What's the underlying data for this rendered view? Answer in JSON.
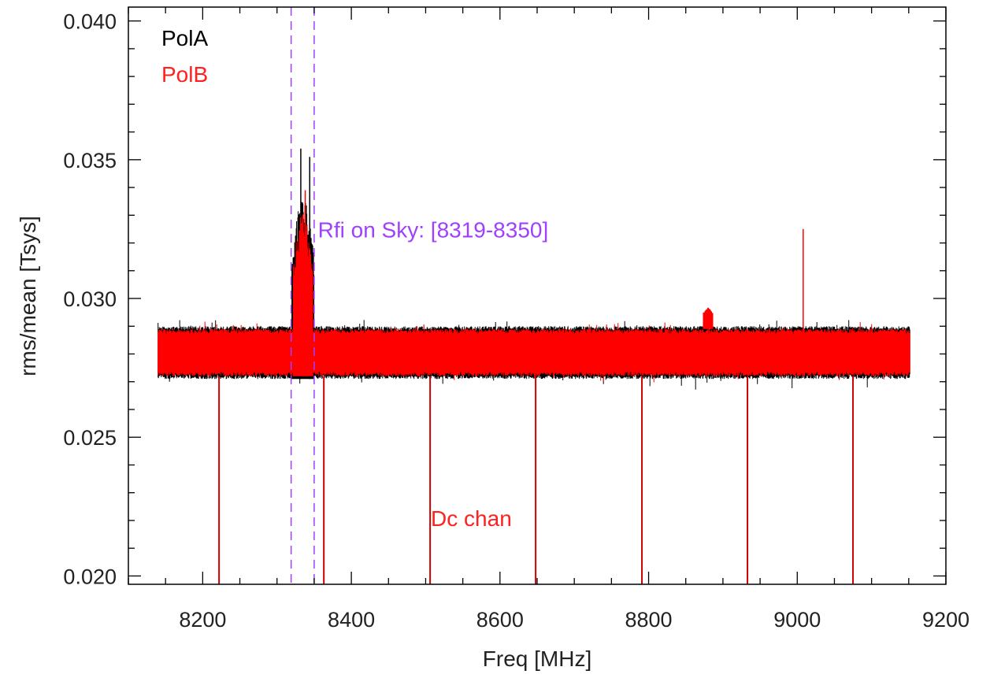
{
  "chart_data": {
    "type": "line",
    "xlabel": "Freq [MHz]",
    "ylabel": "rms/mean [Tsys]",
    "xlim": [
      8100,
      9200
    ],
    "ylim": [
      0.0197,
      0.0405
    ],
    "xticks": [
      8200,
      8400,
      8600,
      8800,
      9000,
      9200
    ],
    "xtick_labels": [
      "8200",
      "8400",
      "8600",
      "8800",
      "9000",
      "9200"
    ],
    "yticks": [
      0.02,
      0.025,
      0.03,
      0.035,
      0.04
    ],
    "ytick_labels": [
      "0.020",
      "0.025",
      "0.030",
      "0.035",
      "0.040"
    ],
    "x_minor_step": 50,
    "y_minor_step": 0.001,
    "x_range": [
      8140,
      9152
    ],
    "series": [
      {
        "name": "PolA",
        "color": "#000000",
        "baseline": 0.028,
        "band_low": 0.0271,
        "band_high": 0.029,
        "features": [
          {
            "kind": "rfi_peak",
            "x": 8332,
            "y": 0.0354
          },
          {
            "kind": "rfi_peak",
            "x": 8344,
            "y": 0.0351
          },
          {
            "kind": "rfi_bump",
            "x_start": 8320,
            "x_end": 8350,
            "y": 0.033
          }
        ]
      },
      {
        "name": "PolB",
        "color": "#ff0000",
        "baseline": 0.028,
        "band_low": 0.0272,
        "band_high": 0.0289,
        "features": [
          {
            "kind": "rfi_peak",
            "x": 8338,
            "y": 0.0339
          },
          {
            "kind": "rfi_bump",
            "x_start": 8322,
            "x_end": 8348,
            "y": 0.0325
          },
          {
            "kind": "spike",
            "x": 9008,
            "y": 0.0325
          },
          {
            "kind": "bump",
            "x": 8880,
            "y": 0.0297
          }
        ]
      }
    ],
    "dc_channels": [
      8222,
      8363,
      8506,
      8648,
      8791,
      8933,
      9075
    ],
    "dc_channel_color": "#cc0000",
    "rfi_window": [
      8319,
      8350
    ],
    "rfi_line_color": "#a040ff",
    "legend": [
      {
        "label": "PolA",
        "color": "#000000"
      },
      {
        "label": "PolB",
        "color": "#ff2020"
      }
    ],
    "legend_position": "top-left",
    "annotations": [
      {
        "text": "Rfi on Sky: [8319-8350]",
        "color": "#a040ff",
        "x": 8355,
        "y": 0.0322
      },
      {
        "text": "Dc chan",
        "color": "#ff2020",
        "x": 8507,
        "y": 0.0218
      }
    ]
  }
}
